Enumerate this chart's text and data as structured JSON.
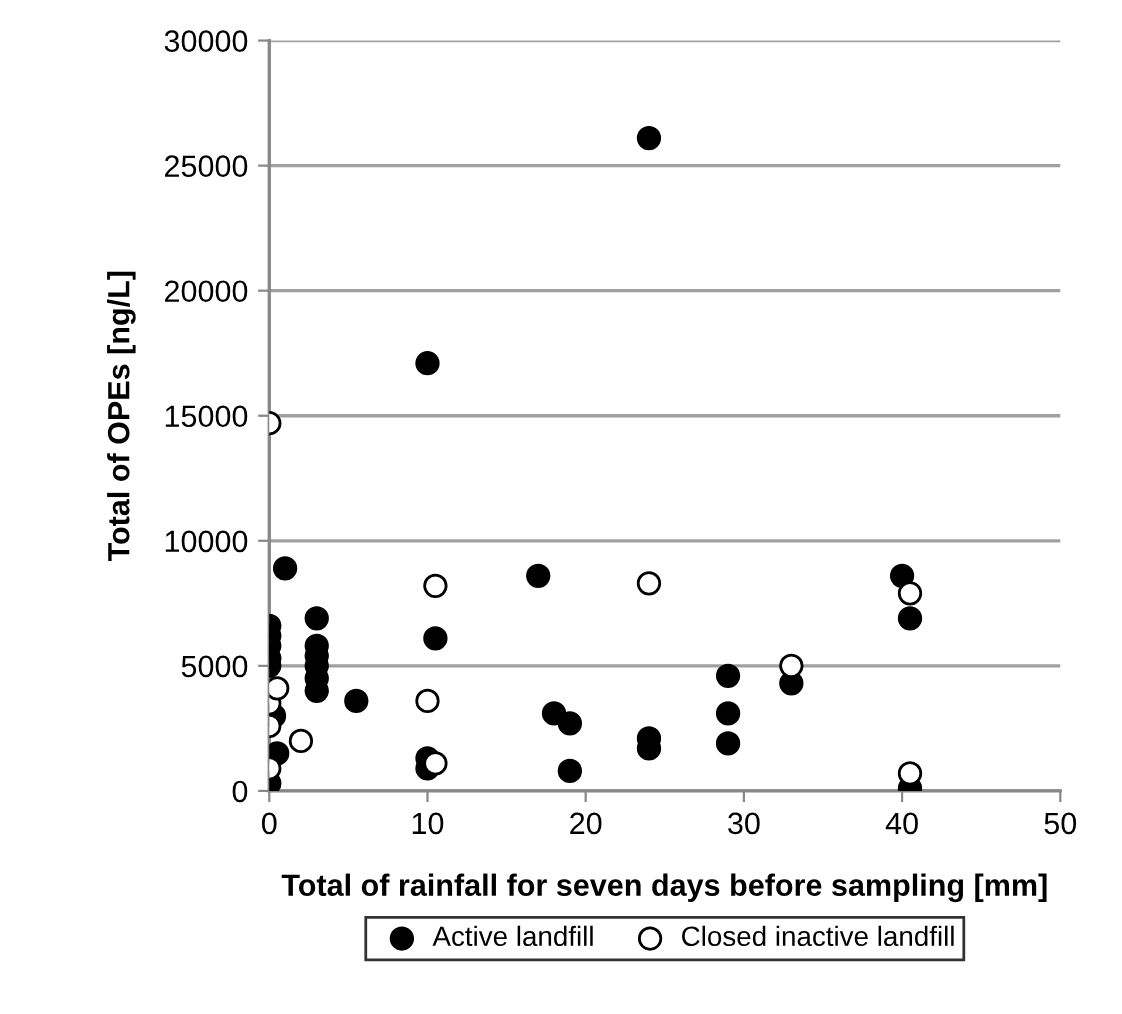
{
  "chart_data": {
    "type": "scatter",
    "xlabel": "Total of rainfall for seven days before sampling [mm]",
    "ylabel": "Total of OPEs [ng/L]",
    "xlim": [
      0,
      50
    ],
    "xticks": [
      0,
      10,
      20,
      30,
      40,
      50
    ],
    "ylim": [
      0,
      30000
    ],
    "yticks": [
      0,
      5000,
      10000,
      15000,
      20000,
      25000,
      30000
    ],
    "grid": "y",
    "legend": "bottom",
    "marker": "circle",
    "series": [
      {
        "name": "Active landfill",
        "color": "#000000",
        "x": [
          0,
          0,
          0,
          0,
          0,
          0,
          0.3,
          0.5,
          1,
          3,
          3,
          3,
          3,
          3,
          3,
          5.5,
          10,
          10,
          10,
          10.5,
          17,
          18,
          19,
          19,
          24,
          24,
          24,
          29,
          29,
          29,
          33,
          40,
          40.5,
          40.5
        ],
        "values": [
          6600,
          6200,
          5800,
          5300,
          5000,
          300,
          3000,
          1500,
          8900,
          6900,
          5800,
          5400,
          5000,
          4500,
          4000,
          3600,
          17100,
          1300,
          900,
          6100,
          8600,
          3100,
          2700,
          800,
          26100,
          2100,
          1700,
          4600,
          3100,
          1900,
          4300,
          8600,
          6900,
          100
        ]
      },
      {
        "name": "Closed inactive landfill",
        "color": "#ffffff",
        "x": [
          0,
          0,
          0,
          0,
          0.5,
          2,
          10,
          10.5,
          10.5,
          24,
          33,
          40.5,
          40.5
        ],
        "values": [
          14700,
          3500,
          2600,
          900,
          4100,
          2000,
          3600,
          8200,
          1100,
          8300,
          5000,
          7900,
          700
        ]
      }
    ]
  }
}
